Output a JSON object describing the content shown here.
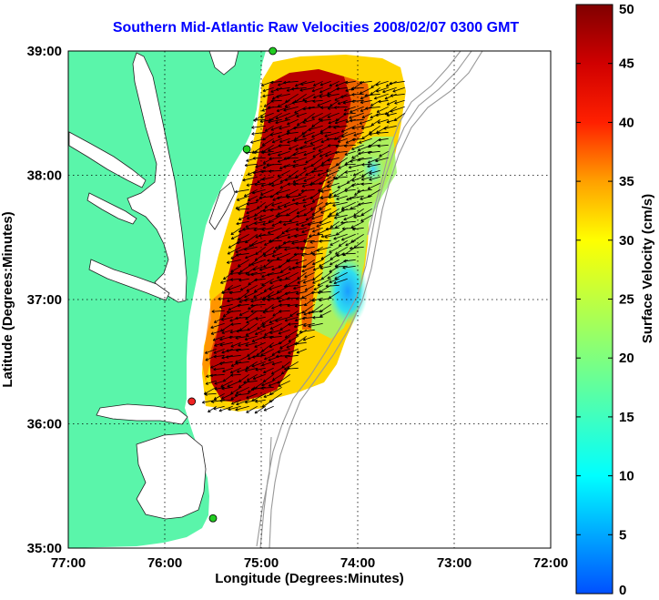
{
  "title": "Southern Mid-Atlantic Raw Velocities 2008/02/07 0300 GMT",
  "x_axis": {
    "label": "Longitude (Degrees:Minutes)",
    "ticks": [
      {
        "value": -77,
        "label": "77:00"
      },
      {
        "value": -76,
        "label": "76:00"
      },
      {
        "value": -75,
        "label": "75:00"
      },
      {
        "value": -74,
        "label": "74:00"
      },
      {
        "value": -73,
        "label": "73:00"
      },
      {
        "value": -72,
        "label": "72:00"
      }
    ],
    "range": [
      -77,
      -72
    ]
  },
  "y_axis": {
    "label": "Latitude (Degrees:Minutes)",
    "ticks": [
      {
        "value": 35,
        "label": "35:00"
      },
      {
        "value": 36,
        "label": "36:00"
      },
      {
        "value": 37,
        "label": "37:00"
      },
      {
        "value": 38,
        "label": "38:00"
      },
      {
        "value": 39,
        "label": "39:00"
      }
    ],
    "range": [
      35,
      39
    ]
  },
  "colorbar": {
    "label": "Surface Velocity (cm/s)",
    "range": [
      0,
      50
    ],
    "ticks": [
      "0",
      "5",
      "10",
      "15",
      "20",
      "25",
      "30",
      "35",
      "40",
      "45",
      "50"
    ]
  },
  "colors": {
    "land": "#5af5aa",
    "ocean": "#ffffff",
    "grid": "#000000",
    "title": "#0000ff",
    "bathymetry": "#999999"
  },
  "legend_placement": "right",
  "stations": [
    {
      "lon": -74.88,
      "lat": 39.0,
      "color": "#22cc22"
    },
    {
      "lon": -75.15,
      "lat": 38.21,
      "color": "#22cc22"
    },
    {
      "lon": -75.72,
      "lat": 36.18,
      "color": "#ee2222"
    },
    {
      "lon": -75.5,
      "lat": 35.24,
      "color": "#22cc22"
    }
  ],
  "velocity_field": {
    "lon_range": [
      -75.55,
      -73.8
    ],
    "lat_range": [
      36.1,
      38.8
    ],
    "speed_range_cm_s": [
      5,
      50
    ],
    "dominant_direction": "southwest"
  }
}
